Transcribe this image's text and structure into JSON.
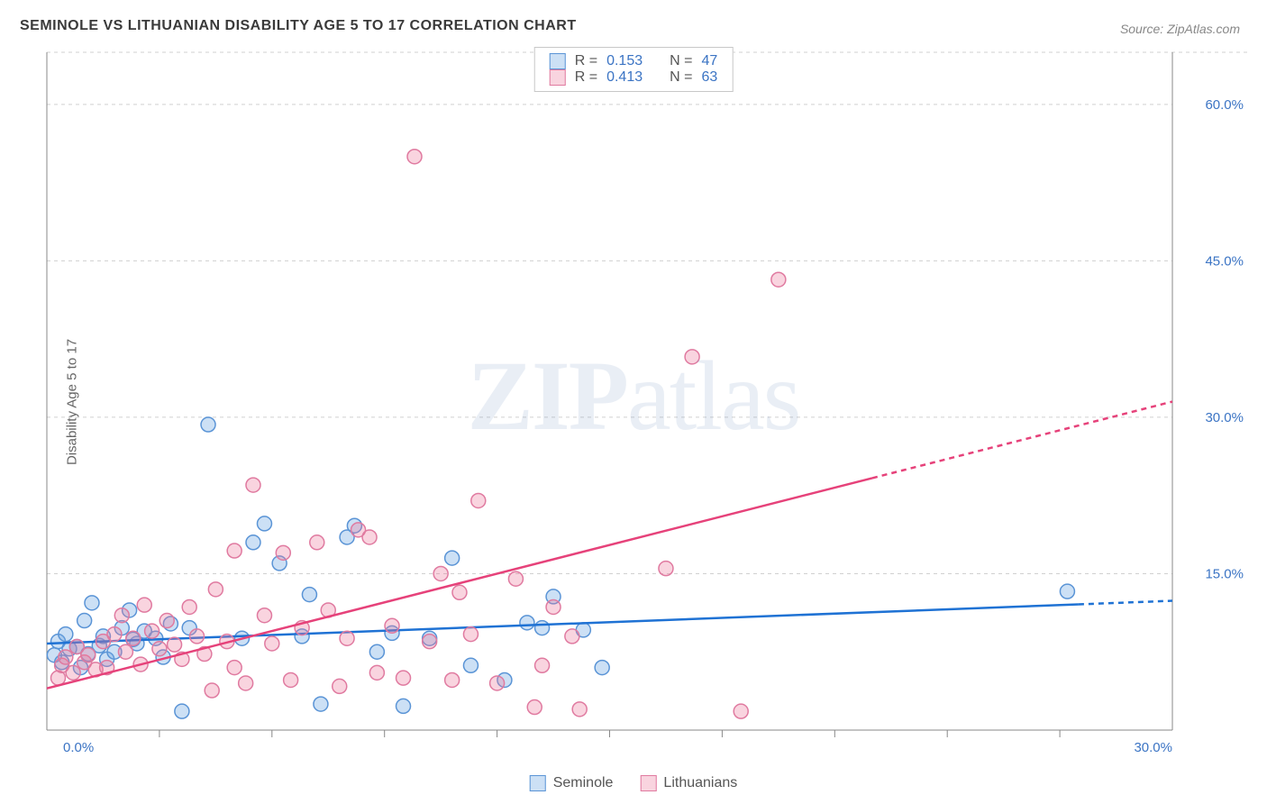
{
  "title": "SEMINOLE VS LITHUANIAN DISABILITY AGE 5 TO 17 CORRELATION CHART",
  "source": "Source: ZipAtlas.com",
  "y_axis_label": "Disability Age 5 to 17",
  "watermark_a": "ZIP",
  "watermark_b": "atlas",
  "chart": {
    "type": "scatter",
    "background_color": "#ffffff",
    "x_domain": [
      0,
      30
    ],
    "y_domain": [
      0,
      65
    ],
    "x_ticks": [
      0,
      30
    ],
    "x_tick_labels": [
      "0.0%",
      "30.0%"
    ],
    "x_minor_ticks": [
      3,
      6,
      9,
      12,
      15,
      18,
      21,
      24,
      27
    ],
    "y_ticks": [
      15,
      30,
      45,
      60
    ],
    "y_tick_labels": [
      "15.0%",
      "30.0%",
      "45.0%",
      "60.0%"
    ],
    "grid_color": "#d0d0d0",
    "axis_color": "#888888",
    "marker_radius": 8,
    "marker_stroke_width": 1.5,
    "line_width": 2.5,
    "series": [
      {
        "name": "Seminole",
        "fill_color": "rgba(110,165,225,0.35)",
        "stroke_color": "#5a94d6",
        "line_color": "#1f72d4",
        "R": "0.153",
        "N": "47",
        "trend": {
          "x1": 0,
          "y1": 8.3,
          "x2": 30,
          "y2": 12.4,
          "extrapolate_from_x": 27.5
        },
        "points": [
          [
            0.2,
            7.2
          ],
          [
            0.3,
            8.5
          ],
          [
            0.4,
            6.5
          ],
          [
            0.5,
            9.2
          ],
          [
            0.6,
            7.8
          ],
          [
            0.8,
            8.0
          ],
          [
            0.9,
            6.0
          ],
          [
            1.0,
            10.5
          ],
          [
            1.1,
            7.3
          ],
          [
            1.2,
            12.2
          ],
          [
            1.4,
            8.1
          ],
          [
            1.5,
            9.0
          ],
          [
            1.6,
            6.8
          ],
          [
            1.8,
            7.5
          ],
          [
            2.0,
            9.8
          ],
          [
            2.2,
            11.5
          ],
          [
            2.4,
            8.3
          ],
          [
            2.6,
            9.5
          ],
          [
            2.9,
            8.8
          ],
          [
            3.1,
            7.0
          ],
          [
            3.3,
            10.2
          ],
          [
            3.6,
            1.8
          ],
          [
            3.8,
            9.8
          ],
          [
            4.3,
            29.3
          ],
          [
            5.2,
            8.8
          ],
          [
            5.5,
            18.0
          ],
          [
            5.8,
            19.8
          ],
          [
            6.2,
            16.0
          ],
          [
            6.8,
            9.0
          ],
          [
            7.3,
            2.5
          ],
          [
            8.0,
            18.5
          ],
          [
            8.2,
            19.6
          ],
          [
            8.8,
            7.5
          ],
          [
            9.2,
            9.3
          ],
          [
            9.5,
            2.3
          ],
          [
            10.2,
            8.8
          ],
          [
            10.8,
            16.5
          ],
          [
            11.3,
            6.2
          ],
          [
            12.2,
            4.8
          ],
          [
            12.8,
            10.3
          ],
          [
            13.2,
            9.8
          ],
          [
            13.5,
            12.8
          ],
          [
            7.0,
            13.0
          ],
          [
            14.3,
            9.6
          ],
          [
            14.8,
            6.0
          ],
          [
            2.3,
            8.7
          ],
          [
            27.2,
            13.3
          ]
        ]
      },
      {
        "name": "Lithuanians",
        "fill_color": "rgba(235,120,155,0.32)",
        "stroke_color": "#e07aa0",
        "line_color": "#e6427a",
        "R": "0.413",
        "N": "63",
        "trend": {
          "x1": 0,
          "y1": 4.0,
          "x2": 30,
          "y2": 31.5,
          "extrapolate_from_x": 22.0
        },
        "points": [
          [
            0.3,
            5.0
          ],
          [
            0.4,
            6.2
          ],
          [
            0.5,
            7.0
          ],
          [
            0.7,
            5.5
          ],
          [
            0.8,
            8.0
          ],
          [
            1.0,
            6.5
          ],
          [
            1.1,
            7.2
          ],
          [
            1.3,
            5.8
          ],
          [
            1.5,
            8.5
          ],
          [
            1.6,
            6.0
          ],
          [
            1.8,
            9.2
          ],
          [
            2.0,
            11.0
          ],
          [
            2.1,
            7.5
          ],
          [
            2.3,
            8.8
          ],
          [
            2.5,
            6.3
          ],
          [
            2.6,
            12.0
          ],
          [
            2.8,
            9.5
          ],
          [
            3.0,
            7.8
          ],
          [
            3.2,
            10.5
          ],
          [
            3.4,
            8.2
          ],
          [
            3.6,
            6.8
          ],
          [
            3.8,
            11.8
          ],
          [
            4.0,
            9.0
          ],
          [
            4.2,
            7.3
          ],
          [
            4.5,
            13.5
          ],
          [
            4.8,
            8.5
          ],
          [
            5.0,
            6.0
          ],
          [
            5.3,
            4.5
          ],
          [
            5.5,
            23.5
          ],
          [
            5.8,
            11.0
          ],
          [
            6.0,
            8.3
          ],
          [
            6.3,
            17.0
          ],
          [
            6.5,
            4.8
          ],
          [
            6.8,
            9.8
          ],
          [
            7.2,
            18.0
          ],
          [
            7.5,
            11.5
          ],
          [
            7.8,
            4.2
          ],
          [
            8.0,
            8.8
          ],
          [
            8.3,
            19.2
          ],
          [
            8.6,
            18.5
          ],
          [
            8.8,
            5.5
          ],
          [
            9.2,
            10.0
          ],
          [
            9.5,
            5.0
          ],
          [
            9.8,
            55.0
          ],
          [
            10.2,
            8.5
          ],
          [
            10.5,
            15.0
          ],
          [
            10.8,
            4.8
          ],
          [
            11.0,
            13.2
          ],
          [
            11.3,
            9.2
          ],
          [
            11.5,
            22.0
          ],
          [
            12.0,
            4.5
          ],
          [
            12.5,
            14.5
          ],
          [
            13.0,
            2.2
          ],
          [
            13.2,
            6.2
          ],
          [
            13.5,
            11.8
          ],
          [
            14.0,
            9.0
          ],
          [
            14.2,
            2.0
          ],
          [
            16.5,
            15.5
          ],
          [
            17.2,
            35.8
          ],
          [
            5.0,
            17.2
          ],
          [
            18.5,
            1.8
          ],
          [
            19.5,
            43.2
          ],
          [
            4.4,
            3.8
          ]
        ]
      }
    ]
  },
  "legend_top": [
    {
      "swatch_fill": "rgba(110,165,225,0.35)",
      "swatch_stroke": "#5a94d6",
      "r_label": "R =",
      "r_val": "0.153",
      "n_label": "N =",
      "n_val": "47"
    },
    {
      "swatch_fill": "rgba(235,120,155,0.32)",
      "swatch_stroke": "#e07aa0",
      "r_label": "R =",
      "r_val": "0.413",
      "n_label": "N =",
      "n_val": "63"
    }
  ],
  "legend_bottom": [
    {
      "swatch_fill": "rgba(110,165,225,0.35)",
      "swatch_stroke": "#5a94d6",
      "label": "Seminole"
    },
    {
      "swatch_fill": "rgba(235,120,155,0.32)",
      "swatch_stroke": "#e07aa0",
      "label": "Lithuanians"
    }
  ],
  "colors": {
    "accent_blue": "#3b74c4"
  }
}
